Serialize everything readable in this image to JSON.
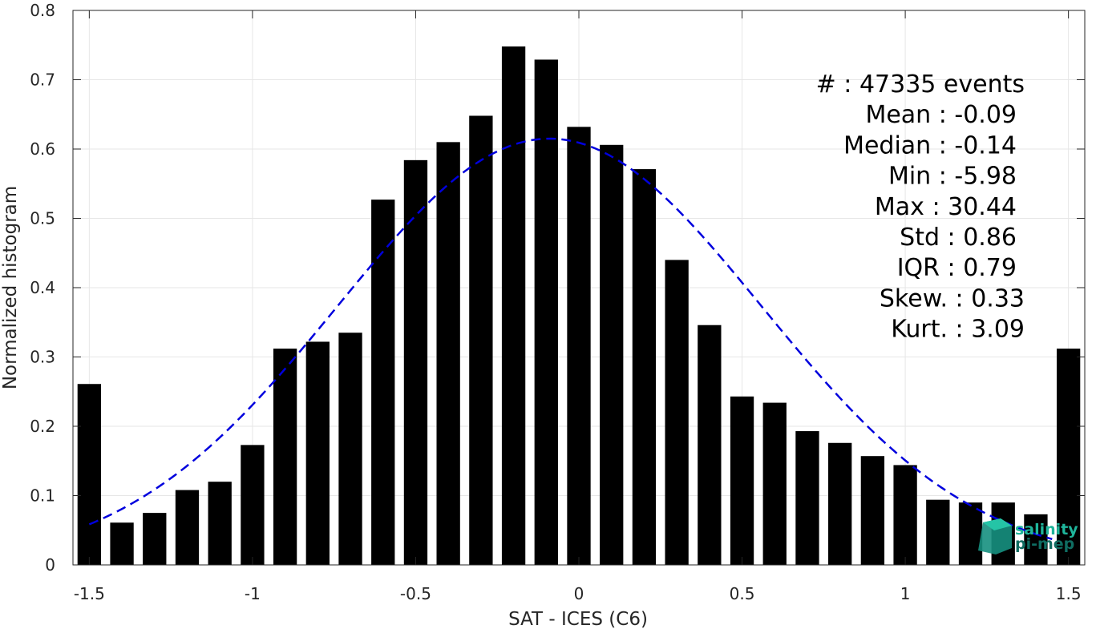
{
  "chart_data": {
    "type": "bar",
    "xlabel": "SAT - ICES (C6)",
    "ylabel": "Normalized histogram",
    "xlim": [
      -1.55,
      1.55
    ],
    "ylim": [
      0,
      0.8
    ],
    "grid": true,
    "x": [
      -1.5,
      -1.4,
      -1.3,
      -1.2,
      -1.1,
      -1.0,
      -0.9,
      -0.8,
      -0.7,
      -0.6,
      -0.5,
      -0.4,
      -0.3,
      -0.2,
      -0.1,
      0.0,
      0.1,
      0.2,
      0.3,
      0.4,
      0.5,
      0.6,
      0.7,
      0.8,
      0.9,
      1.0,
      1.1,
      1.2,
      1.3,
      1.4,
      1.5
    ],
    "values": [
      0.261,
      0.061,
      0.075,
      0.108,
      0.12,
      0.173,
      0.312,
      0.322,
      0.335,
      0.527,
      0.584,
      0.61,
      0.648,
      0.748,
      0.729,
      0.632,
      0.606,
      0.571,
      0.44,
      0.346,
      0.243,
      0.234,
      0.193,
      0.176,
      0.157,
      0.144,
      0.094,
      0.09,
      0.09,
      0.073,
      0.312
    ],
    "xticks": [
      -1.5,
      -1.0,
      -0.5,
      0,
      0.5,
      1.0,
      1.5
    ],
    "xtick_labels": [
      "-1.5",
      "-1",
      "-0.5",
      "0",
      "0.5",
      "1",
      "1.5"
    ],
    "yticks": [
      0,
      0.1,
      0.2,
      0.3,
      0.4,
      0.5,
      0.6,
      0.7,
      0.8
    ],
    "ytick_labels": [
      "0",
      "0.1",
      "0.2",
      "0.3",
      "0.4",
      "0.5",
      "0.6",
      "0.7",
      "0.8"
    ],
    "fit_curve": {
      "style": "dashed",
      "color": "#0000dd",
      "mean": -0.09,
      "std": 0.65,
      "peak": 0.615,
      "x_range": [
        -1.5,
        1.45
      ]
    },
    "bar_color": "#000000",
    "stats": [
      "#  : 47335 events",
      "Mean : -0.09",
      "Median : -0.14",
      "Min : -5.98",
      "Max : 30.44",
      "Std : 0.86",
      "IQR : 0.79",
      "Skew. : 0.33",
      "Kurt. : 3.09"
    ],
    "logo": {
      "line1": "salinity",
      "line2": "pi-mep",
      "color1": "#1fb59b",
      "color2": "#0f6d62"
    }
  }
}
